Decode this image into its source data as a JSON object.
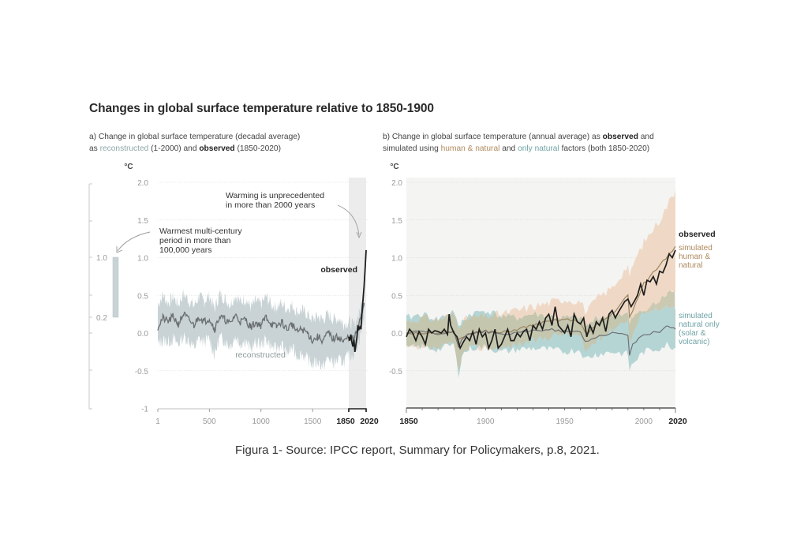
{
  "title": "Changes in global surface temperature relative to 1850-1900",
  "panel_a": {
    "subtitle_line1": "a) Change in global surface temperature (decadal average)",
    "subtitle_line2_prefix": "as ",
    "subtitle_reconstructed": "reconstructed",
    "subtitle_mid": " (1-2000) and ",
    "subtitle_observed": "observed",
    "subtitle_suffix": " (1850-2020)"
  },
  "panel_b": {
    "subtitle_line1_prefix": "b) Change in global surface temperature (annual average) as ",
    "subtitle_observed": "observed",
    "subtitle_line1_suffix": " and",
    "subtitle_line2_prefix": "simulated using ",
    "subtitle_human_natural": "human & natural",
    "subtitle_mid": " and ",
    "subtitle_only_natural": "only natural",
    "subtitle_suffix": " factors (both 1850-2020)"
  },
  "caption": "Figura 1- Source: IPCC report, Summary for Policymakers, p.8, 2021.",
  "colors": {
    "reconstructed_band": "#c9d3d5",
    "reconstructed_line": "#6b6f70",
    "observed_line": "#1e1e1e",
    "human_natural_band": "#efd9c6",
    "human_natural_line": "#9a8460",
    "natural_band": "#a9cfd0",
    "natural_line": "#6f7274",
    "overlap_band": "#c7c4aa",
    "panel_b_bg": "#f4f4f2",
    "shaded_recent": "#ececec"
  },
  "chart_data": [
    {
      "type": "line",
      "id": "panel_a",
      "title": "a) Change in global surface temperature (decadal average) as reconstructed (1-2000) and observed (1850-2020)",
      "xlabel": "",
      "ylabel": "°C",
      "xlim": [
        1,
        2020
      ],
      "ylim": [
        -1,
        2
      ],
      "x_ticks": [
        "1",
        "500",
        "1000",
        "1500",
        "1850",
        "2020"
      ],
      "x_tick_values": [
        1,
        500,
        1000,
        1500,
        1850,
        2020
      ],
      "y_ticks": [
        "2.0",
        "1.5",
        "1.0",
        "0.5",
        "0.0",
        "-0.5",
        "-1"
      ],
      "y_tick_values": [
        2.0,
        1.5,
        1.0,
        0.5,
        0.0,
        -0.5,
        -1
      ],
      "grid": true,
      "shaded_region": [
        1850,
        2020
      ],
      "side_scale": {
        "ticks": [
          "1.0",
          "0.2"
        ],
        "range_bar": [
          0.2,
          1.0
        ],
        "annotation": [
          "Warmest multi-century",
          "period in more than",
          "100,000 years"
        ]
      },
      "annotations": [
        {
          "text": [
            "Warming is unprecedented",
            "in more than 2000 years"
          ],
          "points_to": [
            2020,
            1.6
          ]
        }
      ],
      "series": [
        {
          "name": "reconstructed",
          "x": [
            1,
            50,
            100,
            150,
            200,
            250,
            300,
            350,
            400,
            450,
            500,
            550,
            600,
            650,
            700,
            750,
            800,
            850,
            900,
            950,
            1000,
            1050,
            1100,
            1150,
            1200,
            1250,
            1300,
            1350,
            1400,
            1450,
            1500,
            1550,
            1600,
            1650,
            1700,
            1750,
            1800,
            1850,
            1900,
            1950,
            2000
          ],
          "y": [
            0.08,
            0.2,
            0.15,
            0.22,
            0.12,
            0.25,
            0.18,
            0.1,
            0.22,
            0.15,
            0.2,
            0.05,
            0.22,
            0.18,
            0.12,
            0.24,
            0.15,
            0.18,
            0.08,
            0.14,
            0.1,
            0.22,
            0.12,
            0.08,
            0.15,
            0.05,
            0.12,
            0.02,
            0.05,
            0.0,
            -0.1,
            -0.05,
            -0.1,
            0.0,
            -0.08,
            -0.05,
            -0.12,
            -0.05,
            -0.08,
            0.1,
            0.4
          ],
          "upper": [
            0.38,
            0.5,
            0.4,
            0.48,
            0.38,
            0.52,
            0.44,
            0.36,
            0.48,
            0.42,
            0.5,
            0.32,
            0.52,
            0.46,
            0.38,
            0.5,
            0.42,
            0.46,
            0.34,
            0.42,
            0.38,
            0.48,
            0.38,
            0.34,
            0.4,
            0.32,
            0.38,
            0.28,
            0.3,
            0.25,
            0.18,
            0.22,
            0.18,
            0.25,
            0.18,
            0.2,
            0.12,
            0.15,
            0.1,
            0.25,
            0.55
          ],
          "lower": [
            -0.15,
            -0.1,
            -0.12,
            -0.08,
            -0.15,
            -0.05,
            -0.1,
            -0.2,
            -0.08,
            -0.12,
            -0.08,
            -0.3,
            -0.06,
            -0.1,
            -0.18,
            -0.05,
            -0.14,
            -0.1,
            -0.22,
            -0.12,
            -0.16,
            -0.08,
            -0.18,
            -0.22,
            -0.15,
            -0.28,
            -0.2,
            -0.3,
            -0.28,
            -0.35,
            -0.42,
            -0.38,
            -0.45,
            -0.33,
            -0.4,
            -0.36,
            -0.38,
            -0.3,
            -0.28,
            -0.1,
            0.2
          ]
        },
        {
          "name": "observed",
          "x": [
            1850,
            1860,
            1870,
            1880,
            1890,
            1900,
            1910,
            1920,
            1930,
            1940,
            1950,
            1960,
            1970,
            1980,
            1990,
            2000,
            2010,
            2020
          ],
          "y": [
            -0.05,
            -0.1,
            -0.02,
            -0.12,
            -0.18,
            -0.08,
            -0.25,
            -0.15,
            -0.05,
            0.1,
            0.05,
            0.08,
            0.05,
            0.28,
            0.45,
            0.62,
            0.85,
            1.1
          ]
        }
      ],
      "labels": [
        "observed",
        "reconstructed"
      ]
    },
    {
      "type": "line",
      "id": "panel_b",
      "title": "b) Change in global surface temperature (annual average) as observed and simulated using human & natural and only natural factors (both 1850-2020)",
      "xlabel": "",
      "ylabel": "°C",
      "xlim": [
        1850,
        2020
      ],
      "ylim": [
        -1,
        2
      ],
      "x_ticks": [
        "1850",
        "1900",
        "1950",
        "2000",
        "2020"
      ],
      "x_tick_values": [
        1850,
        1900,
        1950,
        2000,
        2020
      ],
      "y_ticks": [
        "2.0",
        "1.5",
        "1.0",
        "0.5",
        "0.0",
        "-0.5"
      ],
      "y_tick_values": [
        2.0,
        1.5,
        1.0,
        0.5,
        0.0,
        -0.5
      ],
      "grid": true,
      "legend": "right (inline labels)",
      "series": [
        {
          "name": "simulated human & natural",
          "x": [
            1850,
            1860,
            1870,
            1880,
            1883,
            1885,
            1890,
            1900,
            1910,
            1920,
            1930,
            1940,
            1950,
            1960,
            1963,
            1965,
            1970,
            1980,
            1990,
            1991,
            1993,
            2000,
            2010,
            2020
          ],
          "y": [
            0.0,
            0.0,
            -0.02,
            0.02,
            -0.1,
            -0.05,
            0.0,
            0.02,
            0.0,
            0.05,
            0.1,
            0.15,
            0.18,
            0.15,
            0.0,
            0.0,
            0.1,
            0.25,
            0.5,
            0.2,
            0.3,
            0.65,
            0.9,
            1.15
          ],
          "upper": [
            0.15,
            0.2,
            0.18,
            0.25,
            0.1,
            0.15,
            0.2,
            0.22,
            0.25,
            0.3,
            0.35,
            0.4,
            0.45,
            0.42,
            0.3,
            0.3,
            0.45,
            0.6,
            0.9,
            0.7,
            0.9,
            1.2,
            1.5,
            1.9
          ],
          "lower": [
            -0.2,
            -0.22,
            -0.2,
            -0.15,
            -0.5,
            -0.3,
            -0.2,
            -0.2,
            -0.2,
            -0.15,
            -0.1,
            -0.05,
            0.0,
            -0.05,
            -0.25,
            -0.2,
            -0.1,
            0.05,
            0.2,
            -0.15,
            0.0,
            0.3,
            0.45,
            0.55
          ]
        },
        {
          "name": "simulated natural only (solar & volcanic)",
          "x": [
            1850,
            1860,
            1870,
            1880,
            1883,
            1885,
            1890,
            1900,
            1910,
            1920,
            1930,
            1940,
            1950,
            1960,
            1963,
            1965,
            1970,
            1980,
            1990,
            1991,
            1993,
            2000,
            2010,
            2015,
            2020
          ],
          "y": [
            0.0,
            0.02,
            -0.02,
            0.02,
            -0.2,
            -0.08,
            0.0,
            0.02,
            -0.02,
            0.0,
            0.03,
            0.05,
            0.02,
            0.02,
            -0.12,
            -0.1,
            -0.05,
            0.0,
            -0.02,
            -0.3,
            -0.15,
            -0.02,
            0.02,
            0.1,
            0.05
          ],
          "upper": [
            0.2,
            0.25,
            0.18,
            0.3,
            0.05,
            0.15,
            0.25,
            0.3,
            0.22,
            0.2,
            0.25,
            0.22,
            0.2,
            0.2,
            0.1,
            0.1,
            0.2,
            0.25,
            0.25,
            0.1,
            0.2,
            0.3,
            0.3,
            0.35,
            0.3
          ],
          "lower": [
            -0.2,
            -0.18,
            -0.22,
            -0.15,
            -0.55,
            -0.3,
            -0.2,
            -0.18,
            -0.25,
            -0.22,
            -0.2,
            -0.22,
            -0.25,
            -0.22,
            -0.35,
            -0.32,
            -0.28,
            -0.25,
            -0.28,
            -0.5,
            -0.4,
            -0.25,
            -0.2,
            -0.15,
            -0.2
          ]
        },
        {
          "name": "observed",
          "x": [
            1850,
            1852,
            1854,
            1856,
            1858,
            1860,
            1862,
            1864,
            1866,
            1868,
            1870,
            1872,
            1874,
            1876,
            1877,
            1878,
            1880,
            1882,
            1884,
            1886,
            1888,
            1890,
            1892,
            1894,
            1896,
            1898,
            1900,
            1902,
            1904,
            1906,
            1908,
            1910,
            1912,
            1914,
            1916,
            1918,
            1920,
            1922,
            1924,
            1926,
            1928,
            1930,
            1932,
            1934,
            1936,
            1938,
            1940,
            1942,
            1944,
            1946,
            1948,
            1950,
            1952,
            1954,
            1956,
            1958,
            1960,
            1962,
            1964,
            1966,
            1968,
            1970,
            1972,
            1974,
            1976,
            1978,
            1980,
            1982,
            1984,
            1986,
            1988,
            1990,
            1992,
            1994,
            1996,
            1998,
            2000,
            2002,
            2004,
            2006,
            2008,
            2010,
            2012,
            2014,
            2016,
            2018,
            2020
          ],
          "y": [
            -0.05,
            0.05,
            0.0,
            -0.1,
            0.02,
            -0.05,
            -0.15,
            0.05,
            0.0,
            0.03,
            0.02,
            0.0,
            0.05,
            -0.02,
            0.25,
            0.1,
            0.0,
            -0.05,
            -0.2,
            -0.12,
            -0.05,
            -0.1,
            0.02,
            -0.15,
            0.05,
            -0.05,
            0.0,
            -0.2,
            -0.1,
            0.05,
            -0.2,
            -0.15,
            -0.05,
            0.05,
            -0.1,
            -0.1,
            0.0,
            -0.05,
            0.02,
            0.05,
            -0.1,
            0.1,
            0.05,
            0.15,
            0.05,
            0.2,
            0.25,
            0.1,
            0.35,
            0.1,
            0.05,
            0.0,
            0.1,
            -0.05,
            0.25,
            0.15,
            0.12,
            0.2,
            -0.05,
            0.1,
            0.0,
            0.15,
            0.1,
            0.2,
            0.02,
            0.25,
            0.3,
            0.2,
            0.28,
            0.35,
            0.42,
            0.45,
            0.35,
            0.42,
            0.5,
            0.65,
            0.5,
            0.7,
            0.68,
            0.75,
            0.65,
            0.82,
            0.8,
            0.9,
            1.05,
            1.0,
            1.1
          ]
        }
      ],
      "labels": [
        "observed",
        "simulated human & natural",
        "simulated natural only (solar & volcanic)"
      ]
    }
  ],
  "labels_text": {
    "degC": "°C",
    "observed": "observed",
    "reconstructed": "reconstructed",
    "sim_hn": [
      "simulated",
      "human &",
      "natural"
    ],
    "sim_nat": [
      "simulated",
      "natural only",
      "(solar &",
      "volcanic)"
    ],
    "warm_ann": [
      "Warming is unprecedented",
      "in more than 2000 years"
    ],
    "century_ann": [
      "Warmest multi-century",
      "period in more than",
      "100,000 years"
    ],
    "side_ticks": [
      "1.0",
      "0.2"
    ]
  }
}
